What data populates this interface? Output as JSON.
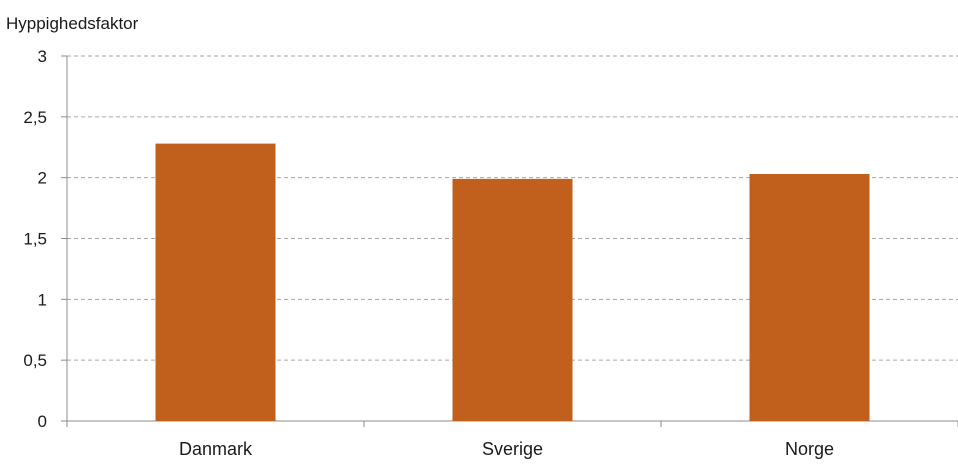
{
  "chart_data": {
    "type": "bar",
    "title": "",
    "xlabel": "",
    "ylabel": "Hyppighedsfaktor",
    "categories": [
      "Danmark",
      "Sverige",
      "Norge"
    ],
    "values": [
      2.28,
      1.99,
      2.03
    ],
    "ylim": [
      0,
      3
    ],
    "yticks": [
      0,
      0.5,
      1,
      1.5,
      2,
      2.5,
      3
    ],
    "ytick_labels": [
      "0",
      "0,5",
      "1",
      "1,5",
      "2",
      "2,5",
      "3"
    ],
    "grid": true,
    "grid_style": "dashed",
    "legend": "none",
    "bar_color": "#c0601c",
    "grid_color": "#a6a6a6",
    "axis_color": "#8c8c8c",
    "text_color": "#1a1a1a"
  }
}
